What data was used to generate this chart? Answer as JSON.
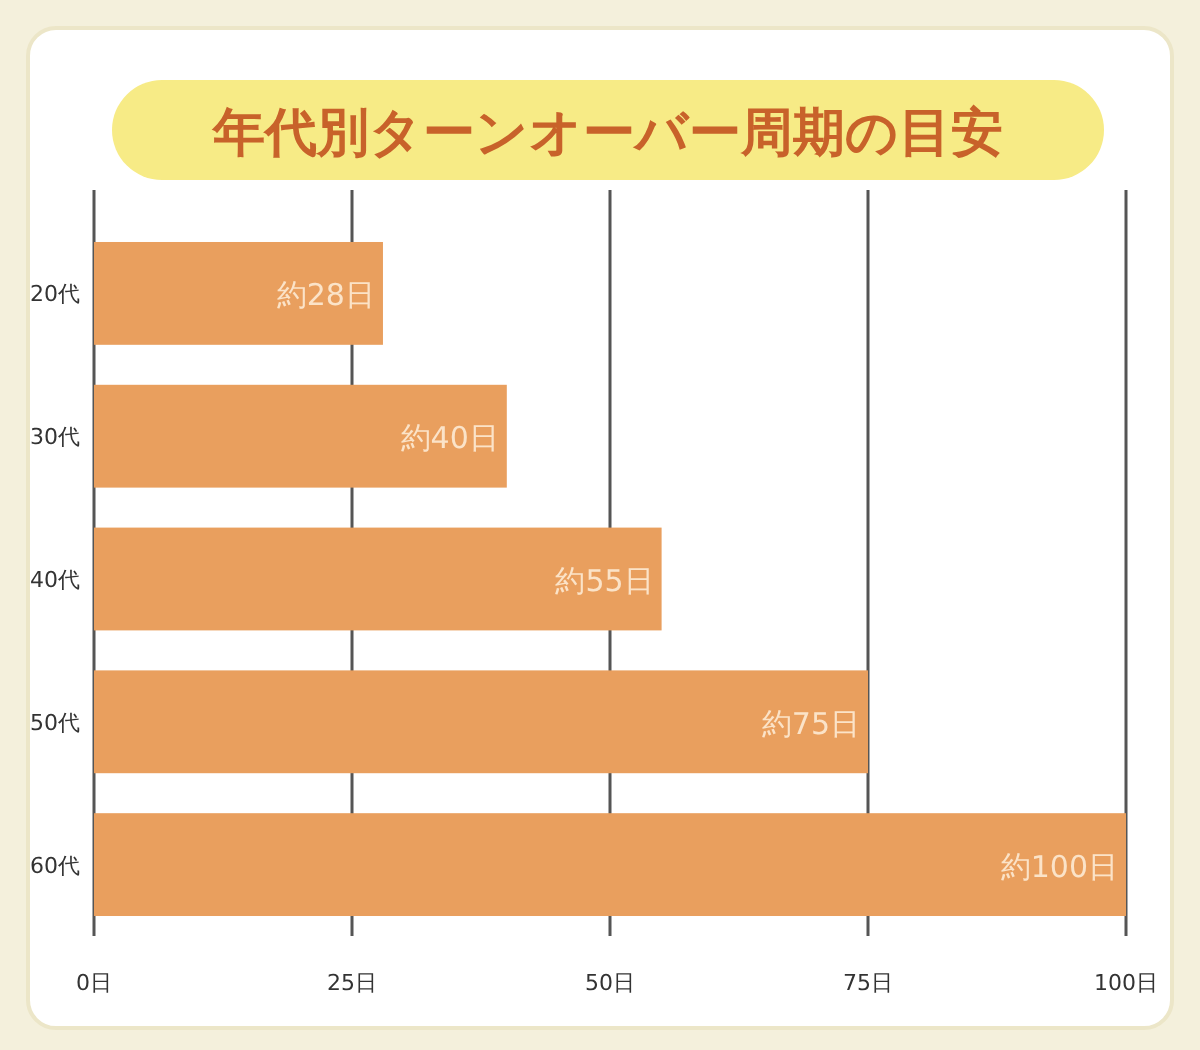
{
  "chart_data": {
    "type": "bar",
    "orientation": "horizontal",
    "title": "年代別ターンオーバー周期の目安",
    "categories": [
      "20代",
      "30代",
      "40代",
      "50代",
      "60代"
    ],
    "values": [
      28,
      40,
      55,
      75,
      100
    ],
    "value_labels": [
      "約28日",
      "約40日",
      "約55日",
      "約75日",
      "約100日"
    ],
    "color": "#e99f5e",
    "xlim": [
      0,
      100
    ],
    "xticks": [
      {
        "value": 0,
        "label": "0日"
      },
      {
        "value": 25,
        "label": "25日"
      },
      {
        "value": 50,
        "label": "50日"
      },
      {
        "value": 75,
        "label": "75日"
      },
      {
        "value": 100,
        "label": "100日"
      }
    ],
    "grid": "x"
  }
}
